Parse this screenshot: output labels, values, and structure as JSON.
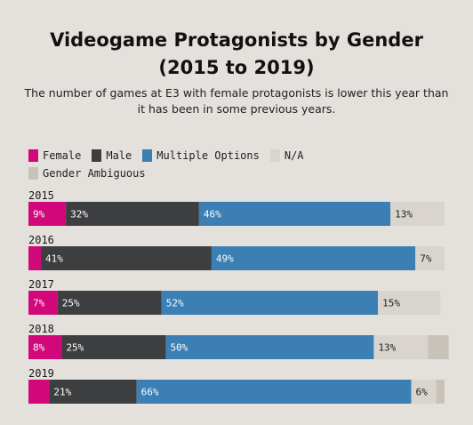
{
  "title": "Videogame Protagonists by Gender (2015 to 2019)",
  "subtitle": "The number of games at E3 with female protagonists is lower this year than it has been in some previous years.",
  "legend": [
    {
      "label": "Female",
      "color": "#d0087a"
    },
    {
      "label": "Male",
      "color": "#3d3e40"
    },
    {
      "label": "Multiple Options",
      "color": "#3b7fb4"
    },
    {
      "label": "N/A",
      "color": "#d9d5ce"
    },
    {
      "label": "Gender Ambiguous",
      "color": "#c8c3b9"
    }
  ],
  "chart_data": {
    "type": "bar",
    "orientation": "horizontal",
    "stacked": true,
    "title": "Videogame Protagonists by Gender (2015 to 2019)",
    "subtitle": "The number of games at E3 with female protagonists is lower this year than it has been in some previous years.",
    "categories": [
      "2015",
      "2016",
      "2017",
      "2018",
      "2019"
    ],
    "xlim": [
      0,
      100
    ],
    "series": [
      {
        "name": "Female",
        "color": "#d0087a",
        "values": [
          9,
          3,
          7,
          8,
          5
        ],
        "labels": [
          "9%",
          "",
          "7%",
          "8%",
          ""
        ]
      },
      {
        "name": "Male",
        "color": "#3d3e40",
        "values": [
          32,
          41,
          25,
          25,
          21
        ],
        "labels": [
          "32%",
          "41%",
          "25%",
          "25%",
          "21%"
        ]
      },
      {
        "name": "Multiple Options",
        "color": "#3b7fb4",
        "values": [
          46,
          49,
          52,
          50,
          66
        ],
        "labels": [
          "46%",
          "49%",
          "52%",
          "50%",
          "66%"
        ]
      },
      {
        "name": "N/A",
        "color": "#d9d5ce",
        "values": [
          13,
          7,
          15,
          13,
          6
        ],
        "labels": [
          "13%",
          "7%",
          "15%",
          "13%",
          "6%"
        ]
      },
      {
        "name": "Gender Ambiguous",
        "color": "#c8c3b9",
        "values": [
          0,
          0,
          0,
          5,
          2
        ],
        "labels": [
          "",
          "",
          "",
          "",
          ""
        ]
      }
    ]
  }
}
